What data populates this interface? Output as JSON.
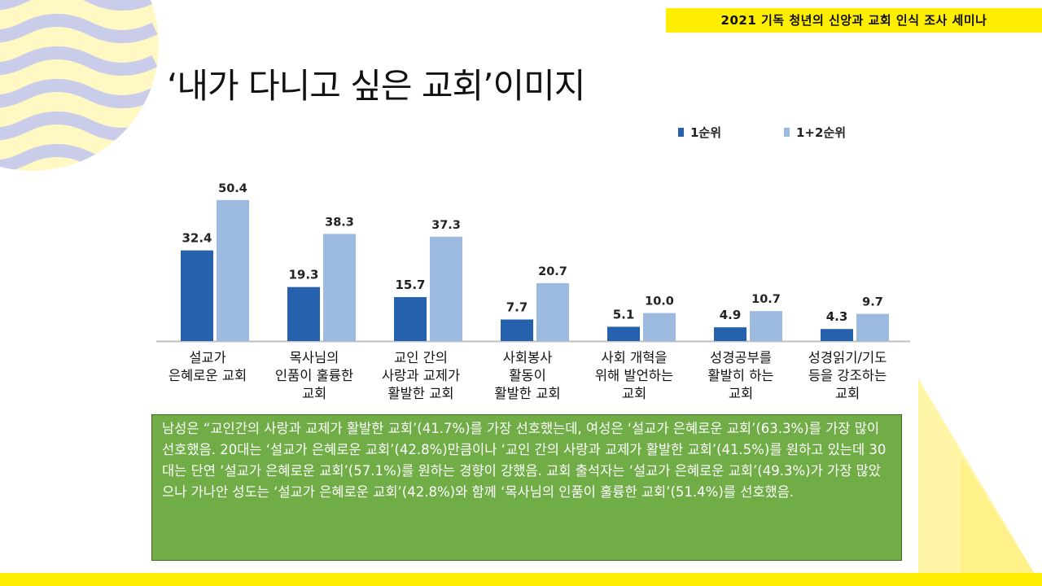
{
  "header": {
    "banner": "2021 기독 청년의 신앙과 교회 인식 조사 세미나",
    "title": "‘내가 다니고 싶은 교회’이미지"
  },
  "colors": {
    "series1": "#2561ac",
    "series2": "#9cb9df",
    "banner": "#ffee00",
    "note_bg": "#70ad47"
  },
  "chart_data": {
    "type": "bar",
    "title": "",
    "xlabel": "",
    "ylabel": "",
    "ylim": [
      0,
      60
    ],
    "legend_position": "top-right",
    "categories": [
      [
        "설교가",
        "은혜로운 교회"
      ],
      [
        "목사님의",
        "인품이 훌륭한",
        "교회"
      ],
      [
        "교인 간의",
        "사랑과 교제가",
        "활발한 교회"
      ],
      [
        "사회봉사",
        "활동이",
        "활발한 교회"
      ],
      [
        "사회 개혁을",
        "위해 발언하는",
        "교회"
      ],
      [
        "성경공부를",
        "활발히 하는",
        "교회"
      ],
      [
        "성경읽기/기도",
        "등을 강조하는",
        "교회"
      ]
    ],
    "series": [
      {
        "name": "1순위",
        "values": [
          32.4,
          19.3,
          15.7,
          7.7,
          5.1,
          4.9,
          4.3
        ],
        "labels": [
          "32.4",
          "19.3",
          "15.7",
          "7.7",
          "5.1",
          "4.9",
          "4.3"
        ]
      },
      {
        "name": "1+2순위",
        "values": [
          50.4,
          38.3,
          37.3,
          20.7,
          10.0,
          10.7,
          9.7
        ],
        "labels": [
          "50.4",
          "38.3",
          "37.3",
          "20.7",
          "10.0",
          "10.7",
          "9.7"
        ]
      }
    ]
  },
  "note": {
    "text": "남성은 “교인간의 사랑과 교제가 활발한 교회’(41.7%)를 가장 선호했는데, 여성은 ‘설교가 은혜로운 교회’(63.3%)를 가장 많이 선호했음.  20대는 ‘설교가 은혜로운 교회’(42.8%)만큼이나 ‘교인 간의 사랑과 교제가 활발한 교회’(41.5%)를 원하고 있는데 30대는 단연 ‘설교가 은혜로운 교회’(57.1%)를 원하는 경향이 강했음.  교회 출석자는 ‘설교가 은혜로운 교회’(49.3%)가  가장 많았으나 가나안 성도는 ‘설교가 은혜로운 교회’(42.8%)와 함께 ‘목사님의 인품이 훌륭한 교회’(51.4%)를 선호했음."
  }
}
